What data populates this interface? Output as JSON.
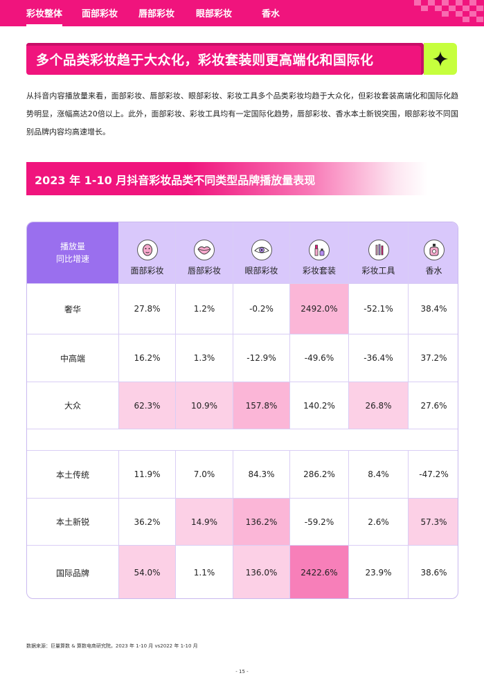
{
  "nav": {
    "tabs": [
      "彩妆整体",
      "面部彩妆",
      "唇部彩妆",
      "眼部彩妆",
      "香水"
    ],
    "active_index": 0
  },
  "banner": {
    "title": "多个品类彩妆趋于大众化，彩妆套装则更高端化和国际化",
    "icon": "sparkle-star-icon"
  },
  "intro": "从抖音内容播放量来看，面部彩妆、唇部彩妆、眼部彩妆、彩妆工具多个品类彩妆均趋于大众化，但彩妆套装高端化和国际化趋势明显，涨幅高达20倍以上。此外，面部彩妆、彩妆工具均有一定国际化趋势，唇部彩妆、香水本土新锐突围，眼部彩妆不同国别品牌内容均高速增长。",
  "section_title": "2023 年 1-10 月抖音彩妆品类不同类型品牌播放量表现",
  "table": {
    "corner_line1": "播放量",
    "corner_line2": "同比增速",
    "columns": [
      {
        "label": "面部彩妆",
        "icon": "face-mask-icon"
      },
      {
        "label": "唇部彩妆",
        "icon": "lips-icon"
      },
      {
        "label": "眼部彩妆",
        "icon": "eye-icon"
      },
      {
        "label": "彩妆套装",
        "icon": "makeup-kit-icon"
      },
      {
        "label": "彩妆工具",
        "icon": "brushes-icon"
      },
      {
        "label": "香水",
        "icon": "perfume-bottle-icon"
      }
    ],
    "rows": [
      {
        "label": "奢华",
        "values": [
          "27.8%",
          "1.2%",
          "-0.2%",
          "2492.0%",
          "-52.1%",
          "38.4%"
        ],
        "shade": [
          0,
          0,
          0,
          2,
          0,
          0
        ]
      },
      {
        "label": "中高端",
        "values": [
          "16.2%",
          "1.3%",
          "-12.9%",
          "-49.6%",
          "-36.4%",
          "37.2%"
        ],
        "shade": [
          0,
          0,
          0,
          0,
          0,
          0
        ]
      },
      {
        "label": "大众",
        "values": [
          "62.3%",
          "10.9%",
          "157.8%",
          "140.2%",
          "26.8%",
          "27.6%"
        ],
        "shade": [
          1,
          1,
          2,
          0,
          1,
          0
        ]
      },
      {
        "label": "本土传统",
        "values": [
          "11.9%",
          "7.0%",
          "84.3%",
          "286.2%",
          "8.4%",
          "-47.2%"
        ],
        "shade": [
          0,
          0,
          0,
          0,
          0,
          0
        ]
      },
      {
        "label": "本土新锐",
        "values": [
          "36.2%",
          "14.9%",
          "136.2%",
          "-59.2%",
          "2.6%",
          "57.3%"
        ],
        "shade": [
          0,
          1,
          2,
          0,
          0,
          1
        ]
      },
      {
        "label": "国际品牌",
        "values": [
          "54.0%",
          "1.1%",
          "136.0%",
          "2422.6%",
          "23.9%",
          "38.6%"
        ],
        "shade": [
          1,
          0,
          1,
          3,
          0,
          0
        ]
      }
    ],
    "shade_colors": [
      "#ffffff",
      "#fcd0e6",
      "#fbb6d7",
      "#f77fb9"
    ]
  },
  "source": "数据来源：巨量算数 & 算数电商研究院，2023 年 1-10 月 vs2022 年 1-10 月",
  "page_number": "- 15 -"
}
